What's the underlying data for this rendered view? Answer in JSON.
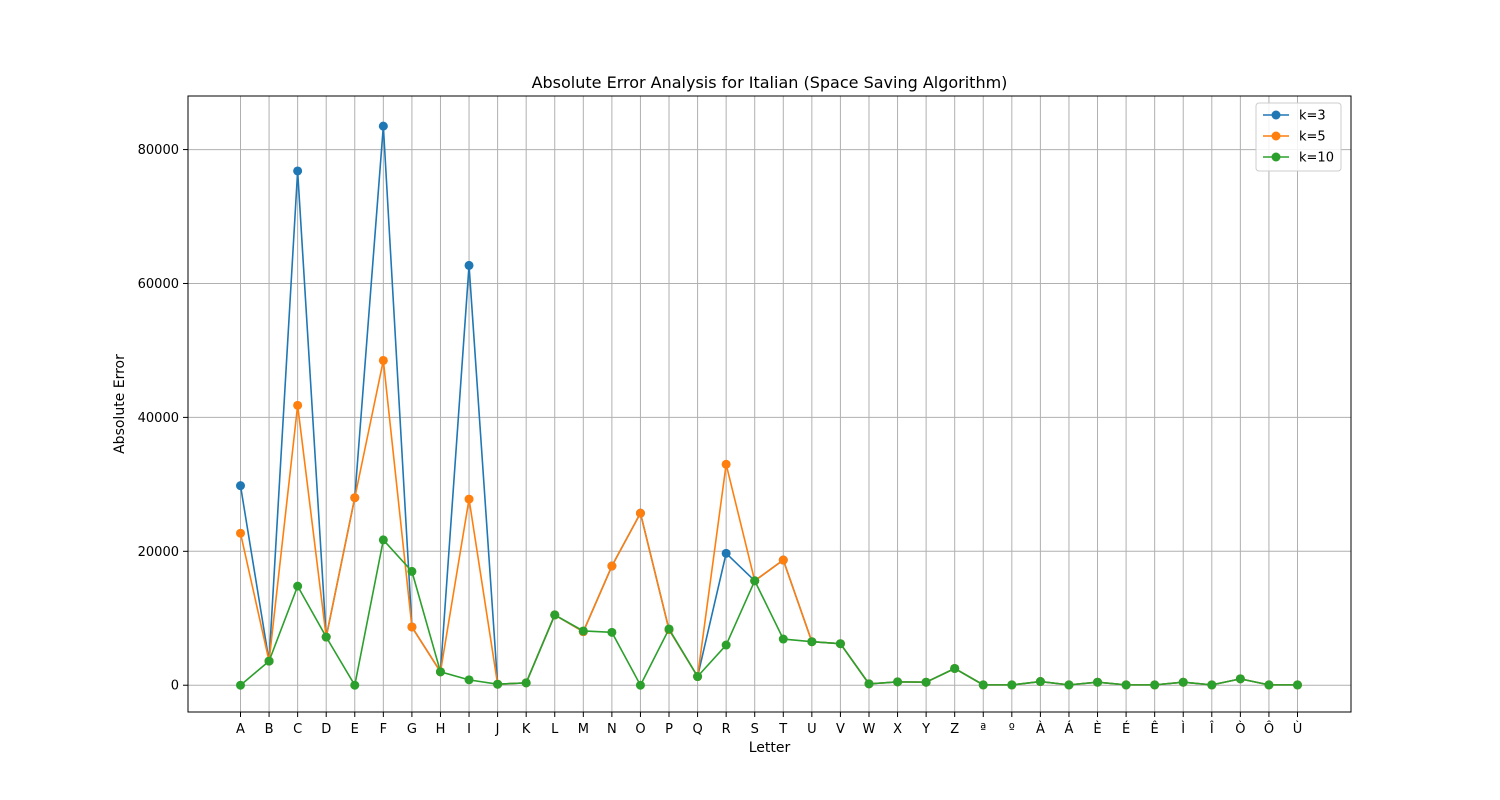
{
  "chart_data": {
    "type": "line",
    "title": "Absolute Error Analysis for Italian (Space Saving Algorithm)",
    "xlabel": "Letter",
    "ylabel": "Absolute Error",
    "categories": [
      "A",
      "B",
      "C",
      "D",
      "E",
      "F",
      "G",
      "H",
      "I",
      "J",
      "K",
      "L",
      "M",
      "N",
      "O",
      "P",
      "Q",
      "R",
      "S",
      "T",
      "U",
      "V",
      "W",
      "X",
      "Y",
      "Z",
      "ª",
      "º",
      "À",
      "Á",
      "È",
      "É",
      "Ê",
      "Ì",
      "Î",
      "Ò",
      "Ô",
      "Ù"
    ],
    "ylim": [
      -4000,
      88000
    ],
    "yticks": [
      0,
      20000,
      40000,
      60000,
      80000
    ],
    "grid": true,
    "legend_position": "top-right",
    "marker": "circle",
    "series": [
      {
        "name": "k=3",
        "color": "#1f77b4",
        "values": [
          29800,
          3600,
          76800,
          7200,
          28000,
          83500,
          8700,
          2000,
          62700,
          150,
          350,
          10500,
          8000,
          17800,
          25700,
          8300,
          1300,
          19700,
          15600,
          18700,
          6500,
          6200,
          200,
          500,
          450,
          2500,
          50,
          50,
          550,
          50,
          450,
          50,
          50,
          450,
          50,
          950,
          50,
          50
        ]
      },
      {
        "name": "k=5",
        "color": "#ff7f0e",
        "values": [
          22700,
          3600,
          41800,
          7200,
          28000,
          48500,
          8700,
          2000,
          27800,
          150,
          350,
          10500,
          8000,
          17800,
          25700,
          8300,
          1300,
          33000,
          15600,
          18700,
          6500,
          6200,
          200,
          500,
          450,
          2500,
          50,
          50,
          550,
          50,
          450,
          50,
          50,
          450,
          50,
          950,
          50,
          50
        ]
      },
      {
        "name": "k=10",
        "color": "#2ca02c",
        "values": [
          0,
          3600,
          14800,
          7200,
          0,
          21700,
          17000,
          2000,
          800,
          150,
          350,
          10500,
          8100,
          7900,
          0,
          8400,
          1300,
          6000,
          15600,
          6900,
          6500,
          6200,
          200,
          500,
          450,
          2500,
          50,
          50,
          550,
          50,
          450,
          50,
          50,
          450,
          50,
          950,
          50,
          50
        ]
      }
    ]
  }
}
